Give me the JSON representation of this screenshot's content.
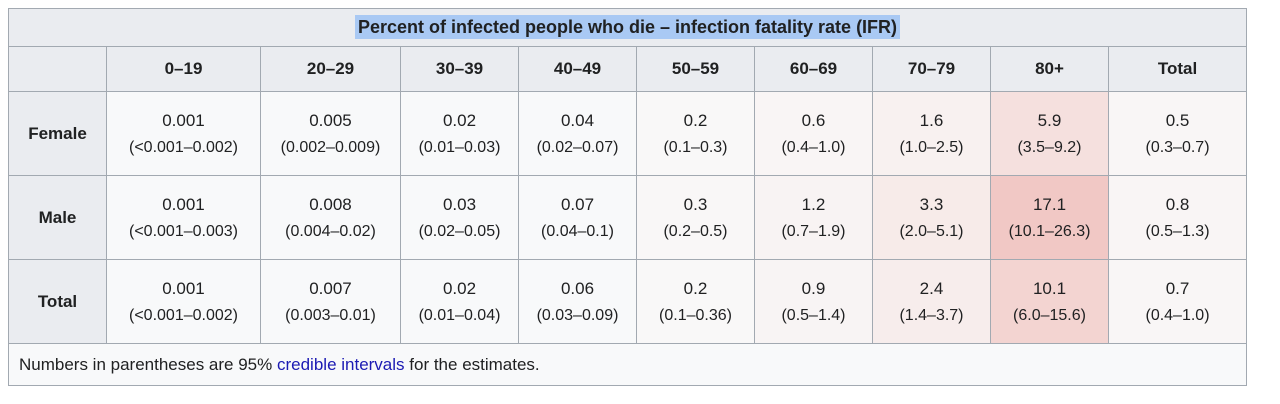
{
  "title": "Percent of infected people who die – infection fatality rate (IFR)",
  "columns": [
    "0–19",
    "20–29",
    "30–39",
    "40–49",
    "50–59",
    "60–69",
    "70–79",
    "80+",
    "Total"
  ],
  "rows": [
    {
      "label": "Female",
      "cells": [
        {
          "value": "0.001",
          "ci": "(<0.001–0.002)",
          "bg": "#f8f9fa"
        },
        {
          "value": "0.005",
          "ci": "(0.002–0.009)",
          "bg": "#f8f9fa"
        },
        {
          "value": "0.02",
          "ci": "(0.01–0.03)",
          "bg": "#f8f9fa"
        },
        {
          "value": "0.04",
          "ci": "(0.02–0.07)",
          "bg": "#f8f9fa"
        },
        {
          "value": "0.2",
          "ci": "(0.1–0.3)",
          "bg": "#f9f8f8"
        },
        {
          "value": "0.6",
          "ci": "(0.4–1.0)",
          "bg": "#f9f5f5"
        },
        {
          "value": "1.6",
          "ci": "(1.0–2.5)",
          "bg": "#f8f1f0"
        },
        {
          "value": "5.9",
          "ci": "(3.5–9.2)",
          "bg": "#f5e0de"
        },
        {
          "value": "0.5",
          "ci": "(0.3–0.7)",
          "bg": "#f9f6f6"
        }
      ]
    },
    {
      "label": "Male",
      "cells": [
        {
          "value": "0.001",
          "ci": "(<0.001–0.003)",
          "bg": "#f8f9fa"
        },
        {
          "value": "0.008",
          "ci": "(0.004–0.02)",
          "bg": "#f8f9fa"
        },
        {
          "value": "0.03",
          "ci": "(0.02–0.05)",
          "bg": "#f8f9fa"
        },
        {
          "value": "0.07",
          "ci": "(0.04–0.1)",
          "bg": "#f8f9fa"
        },
        {
          "value": "0.3",
          "ci": "(0.2–0.5)",
          "bg": "#f9f7f7"
        },
        {
          "value": "1.2",
          "ci": "(0.7–1.9)",
          "bg": "#f8f3f3"
        },
        {
          "value": "3.3",
          "ci": "(2.0–5.1)",
          "bg": "#f7ebe9"
        },
        {
          "value": "17.1",
          "ci": "(10.1–26.3)",
          "bg": "#f1c8c5"
        },
        {
          "value": "0.8",
          "ci": "(0.5–1.3)",
          "bg": "#f9f5f5"
        }
      ]
    },
    {
      "label": "Total",
      "cells": [
        {
          "value": "0.001",
          "ci": "(<0.001–0.002)",
          "bg": "#f8f9fa"
        },
        {
          "value": "0.007",
          "ci": "(0.003–0.01)",
          "bg": "#f8f9fa"
        },
        {
          "value": "0.02",
          "ci": "(0.01–0.04)",
          "bg": "#f8f9fa"
        },
        {
          "value": "0.06",
          "ci": "(0.03–0.09)",
          "bg": "#f8f9fa"
        },
        {
          "value": "0.2",
          "ci": "(0.1–0.36)",
          "bg": "#f9f8f8"
        },
        {
          "value": "0.9",
          "ci": "(0.5–1.4)",
          "bg": "#f8f4f4"
        },
        {
          "value": "2.4",
          "ci": "(1.4–3.7)",
          "bg": "#f7edec"
        },
        {
          "value": "10.1",
          "ci": "(6.0–15.6)",
          "bg": "#f3d4d1"
        },
        {
          "value": "0.7",
          "ci": "(0.4–1.0)",
          "bg": "#f9f6f6"
        }
      ]
    }
  ],
  "footnote": {
    "prefix": "Numbers in parentheses are 95% ",
    "link_text": "credible intervals",
    "suffix": " for the estimates."
  },
  "colors": {
    "header_bg": "#eaecf0",
    "table_bg": "#f8f9fa",
    "border": "#a2a9b1",
    "text": "#202122",
    "link": "#1b1ab3",
    "title_highlight": "#a9c9f4",
    "heat_max": "#f1c8c5"
  },
  "chart_data": {
    "type": "table",
    "title": "Percent of infected people who die – infection fatality rate (IFR)",
    "columns": [
      "0–19",
      "20–29",
      "30–39",
      "40–49",
      "50–59",
      "60–69",
      "70–79",
      "80+",
      "Total"
    ],
    "rows": [
      {
        "label": "Female",
        "ifr_percent": [
          0.001,
          0.005,
          0.02,
          0.04,
          0.2,
          0.6,
          1.6,
          5.9,
          0.5
        ],
        "credible_interval_95": [
          "<0.001–0.002",
          "0.002–0.009",
          "0.01–0.03",
          "0.02–0.07",
          "0.1–0.3",
          "0.4–1.0",
          "1.0–2.5",
          "3.5–9.2",
          "0.3–0.7"
        ]
      },
      {
        "label": "Male",
        "ifr_percent": [
          0.001,
          0.008,
          0.03,
          0.07,
          0.3,
          1.2,
          3.3,
          17.1,
          0.8
        ],
        "credible_interval_95": [
          "<0.001–0.003",
          "0.004–0.02",
          "0.02–0.05",
          "0.04–0.1",
          "0.2–0.5",
          "0.7–1.9",
          "2.0–5.1",
          "10.1–26.3",
          "0.5–1.3"
        ]
      },
      {
        "label": "Total",
        "ifr_percent": [
          0.001,
          0.007,
          0.02,
          0.06,
          0.2,
          0.9,
          2.4,
          10.1,
          0.7
        ],
        "credible_interval_95": [
          "<0.001–0.002",
          "0.003–0.01",
          "0.01–0.04",
          "0.03–0.09",
          "0.1–0.36",
          "0.5–1.4",
          "1.4–3.7",
          "6.0–15.6",
          "0.4–1.0"
        ]
      }
    ],
    "note": "Numbers in parentheses are 95% credible intervals for the estimates.",
    "heatmap": "cells shaded pink with intensity proportional to IFR value"
  }
}
